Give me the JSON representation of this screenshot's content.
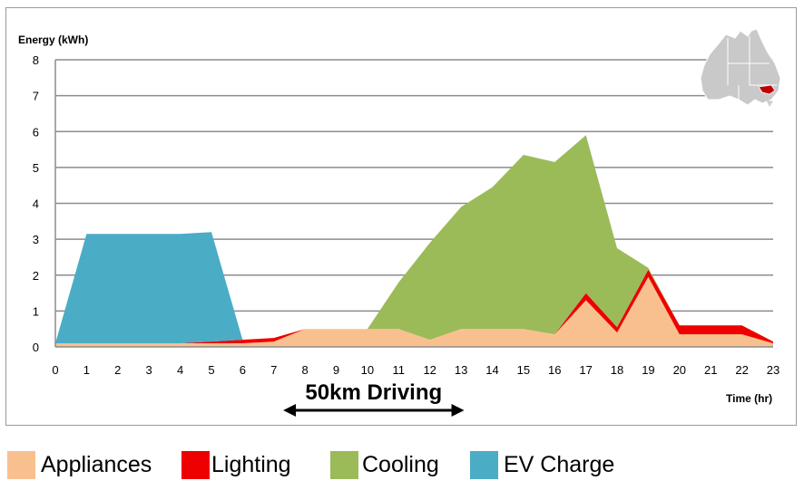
{
  "chart_data": {
    "type": "area",
    "stacked": true,
    "ylabel": "Energy (kWh)",
    "xlabel": "Time (hr)",
    "ylim": [
      0,
      8
    ],
    "xlim": [
      0,
      23
    ],
    "yticks": [
      "0",
      "1",
      "2",
      "3",
      "4",
      "5",
      "6",
      "7",
      "8"
    ],
    "xticks": [
      "0",
      "1",
      "2",
      "3",
      "4",
      "5",
      "6",
      "7",
      "8",
      "9",
      "10",
      "11",
      "12",
      "13",
      "14",
      "15",
      "16",
      "17",
      "18",
      "19",
      "20",
      "21",
      "22",
      "23"
    ],
    "grid": "horizontal",
    "legend_position": "bottom",
    "x": [
      0,
      1,
      2,
      3,
      4,
      5,
      6,
      7,
      8,
      9,
      10,
      11,
      12,
      13,
      14,
      15,
      16,
      17,
      18,
      19,
      20,
      21,
      22,
      23
    ],
    "series": [
      {
        "name": "Appliances",
        "color": "#F9C08F",
        "values": [
          0.1,
          0.1,
          0.1,
          0.1,
          0.1,
          0.1,
          0.1,
          0.15,
          0.5,
          0.5,
          0.5,
          0.5,
          0.2,
          0.5,
          0.5,
          0.5,
          0.35,
          1.3,
          0.4,
          1.95,
          0.35,
          0.35,
          0.35,
          0.1
        ]
      },
      {
        "name": "Lighting",
        "color": "#EE0000",
        "values": [
          0,
          0,
          0,
          0,
          0,
          0.05,
          0.1,
          0.1,
          0,
          0,
          0,
          0,
          0,
          0,
          0,
          0,
          0,
          0.2,
          0.15,
          0.2,
          0.25,
          0.25,
          0.25,
          0.05
        ]
      },
      {
        "name": "Cooling",
        "color": "#9BBB59",
        "values": [
          0,
          0,
          0,
          0,
          0,
          0,
          0,
          0,
          0,
          0,
          0,
          1.3,
          2.7,
          3.4,
          3.95,
          4.85,
          4.8,
          4.4,
          2.2,
          0.05,
          0,
          0,
          0,
          0
        ]
      },
      {
        "name": "EV Charge",
        "color": "#4BACC6",
        "values": [
          0,
          3.05,
          3.05,
          3.05,
          3.05,
          3.05,
          0,
          0,
          0,
          0,
          0,
          0,
          0,
          0,
          0,
          0,
          0,
          0,
          0,
          0,
          0,
          0,
          0,
          0
        ]
      }
    ],
    "annotation": {
      "text": "50km Driving",
      "x_start": 7.3,
      "x_end": 13.1
    }
  },
  "map_inset": {
    "icon": "australia-map-icon",
    "highlight_color": "#C00000"
  }
}
